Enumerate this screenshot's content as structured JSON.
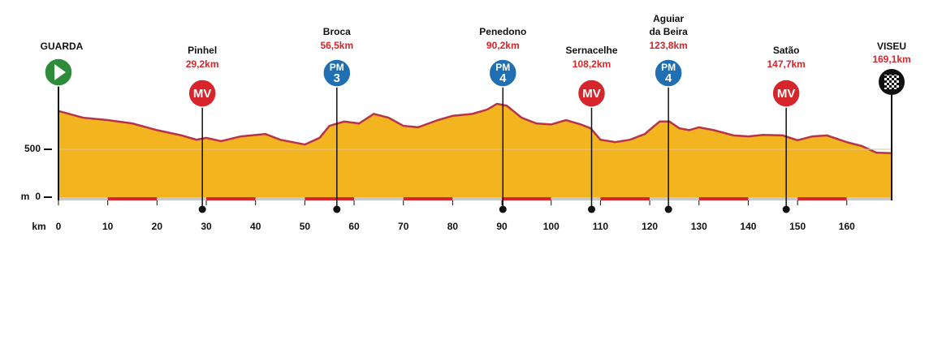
{
  "chart_data": {
    "type": "area",
    "x": [
      0,
      5,
      10,
      15,
      20,
      25,
      28,
      30,
      33,
      37,
      42,
      45,
      50,
      53,
      55,
      58,
      61,
      64,
      67,
      70,
      73,
      77,
      80,
      84,
      87,
      89,
      91,
      94,
      97,
      100,
      103,
      106,
      108,
      110,
      113,
      116,
      119,
      122,
      124,
      126,
      128,
      130,
      133,
      137,
      140,
      143,
      147,
      150,
      153,
      156,
      160,
      163,
      166,
      169.1
    ],
    "values": [
      900,
      830,
      805,
      770,
      700,
      645,
      600,
      620,
      585,
      635,
      660,
      600,
      550,
      620,
      745,
      790,
      770,
      870,
      830,
      745,
      730,
      805,
      850,
      870,
      915,
      975,
      955,
      830,
      770,
      760,
      805,
      760,
      720,
      600,
      575,
      600,
      660,
      790,
      790,
      720,
      700,
      730,
      700,
      645,
      635,
      650,
      645,
      595,
      635,
      645,
      575,
      535,
      465,
      460
    ],
    "color": "#f2b51f",
    "line_color": "#b8334a",
    "xlim": [
      0,
      169.1
    ],
    "ylim": [
      0,
      1000
    ],
    "xticks": [
      0,
      10,
      20,
      30,
      40,
      50,
      60,
      70,
      80,
      90,
      100,
      110,
      120,
      130,
      140,
      150,
      160
    ],
    "yticks": [
      0,
      500
    ],
    "x_label": "km",
    "y_label": "m",
    "start": {
      "name": "GUARDA",
      "km": 0,
      "color": "#2e8b3a"
    },
    "finish": {
      "name": "VISEU",
      "km": 169.1,
      "km_label": "169,1km"
    },
    "markers": [
      {
        "name": [
          "Pinhel"
        ],
        "km": 29.2,
        "km_label": "29,2km",
        "badge": "MV",
        "color": "#d7262b"
      },
      {
        "name": [
          "Broca"
        ],
        "km": 56.5,
        "km_label": "56,5km",
        "badge": "PM",
        "category": "3",
        "color": "#1f6fb2"
      },
      {
        "name": [
          "Penedono"
        ],
        "km": 90.2,
        "km_label": "90,2km",
        "badge": "PM",
        "category": "4",
        "color": "#1f6fb2"
      },
      {
        "name": [
          "Sernacelhe"
        ],
        "km": 108.2,
        "km_label": "108,2km",
        "badge": "MV",
        "color": "#d7262b"
      },
      {
        "name": [
          "Aguiar",
          "da Beira"
        ],
        "km": 123.8,
        "km_label": "123,8km",
        "badge": "PM",
        "category": "4",
        "color": "#1f6fb2"
      },
      {
        "name": [
          "Satão"
        ],
        "km": 147.7,
        "km_label": "147,7km",
        "badge": "MV",
        "color": "#d7262b"
      }
    ]
  }
}
